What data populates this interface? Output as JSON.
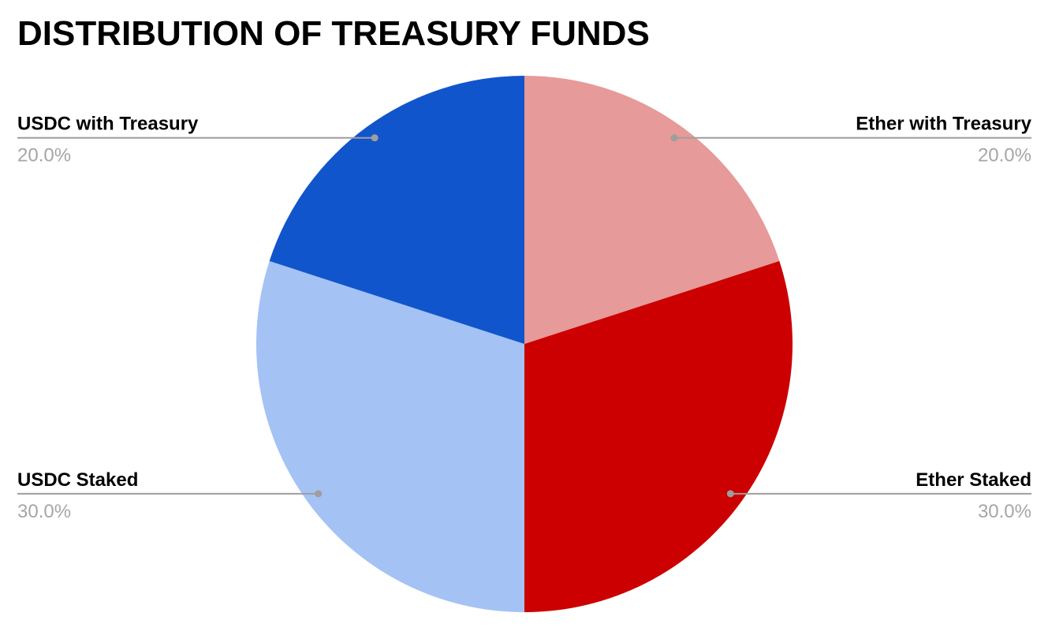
{
  "chart_data": {
    "type": "pie",
    "title": "DISTRIBUTION OF TREASURY FUNDS",
    "categories": [
      "Ether with Treasury",
      "Ether Staked",
      "USDC Staked",
      "USDC with Treasury"
    ],
    "values": [
      20,
      30,
      30,
      20
    ],
    "value_labels": [
      "20.0%",
      "30.0%",
      "30.0%",
      "20.0%"
    ],
    "colors": [
      "#e69a99",
      "#cc0000",
      "#a4c2f4",
      "#1155cc"
    ]
  }
}
